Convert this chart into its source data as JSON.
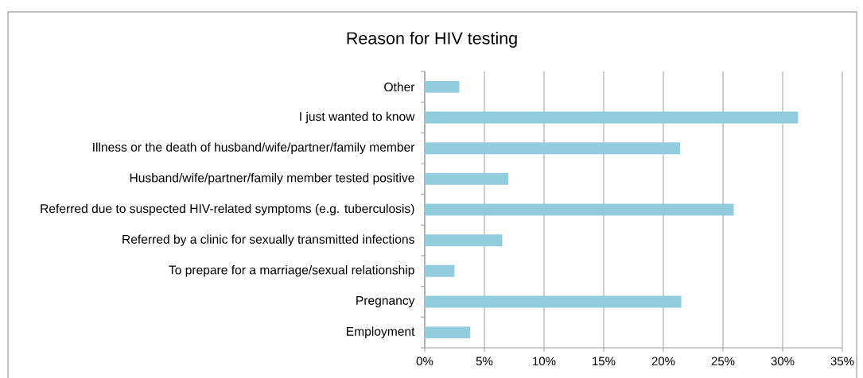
{
  "chart_data": {
    "type": "bar",
    "orientation": "horizontal",
    "title": "Reason for HIV testing",
    "categories": [
      "Other",
      "I just wanted to know",
      "Illness or the death of husband/wife/partner/family member",
      "Husband/wife/partner/family member tested positive",
      "Referred due to suspected HIV-related symptoms (e.g. tuberculosis)",
      "Referred by a clinic for sexually transmitted infections",
      "To prepare for a marriage/sexual relationship",
      "Pregnancy",
      "Employment"
    ],
    "values": [
      2.9,
      31.3,
      21.4,
      7.0,
      25.9,
      6.5,
      2.5,
      21.5,
      3.8
    ],
    "color": "#93cddd",
    "xlim": [
      0,
      35
    ],
    "xticks": [
      {
        "value": 0,
        "label": "0%"
      },
      {
        "value": 5,
        "label": "5%"
      },
      {
        "value": 10,
        "label": "10%"
      },
      {
        "value": 15,
        "label": "15%"
      },
      {
        "value": 20,
        "label": "20%"
      },
      {
        "value": 25,
        "label": "25%"
      },
      {
        "value": 30,
        "label": "30%"
      },
      {
        "value": 35,
        "label": "35%"
      }
    ],
    "grid": "x"
  }
}
